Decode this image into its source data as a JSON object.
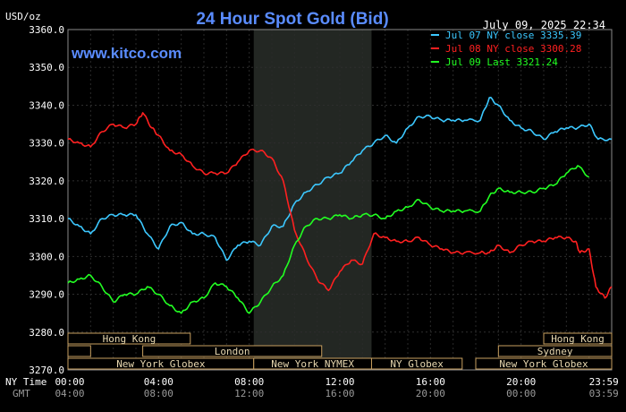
{
  "chart_data": {
    "type": "line",
    "title": "24 Hour Spot Gold (Bid)",
    "source": "www.kitco.com",
    "timestamp": "July 09, 2025 22:34",
    "ylabel": "USD/oz",
    "ylim": [
      3270,
      3360
    ],
    "xlim": [
      0,
      24
    ],
    "y_ticks": [
      "3360.0",
      "3350.0",
      "3340.0",
      "3330.0",
      "3320.0",
      "3310.0",
      "3300.0",
      "3290.0",
      "3280.0",
      "3270.0"
    ],
    "x_ticks_ny": [
      "00:00",
      "04:00",
      "08:00",
      "12:00",
      "16:00",
      "20:00",
      "23:59"
    ],
    "x_ticks_gmt": [
      "04:00",
      "08:00",
      "12:00",
      "16:00",
      "20:00",
      "00:00",
      "03:59"
    ],
    "row_labels": {
      "ny": "NY Time",
      "gmt": "GMT"
    },
    "grid": true,
    "legend_position": "top-right",
    "shaded_session": [
      8.2,
      13.4
    ],
    "sessions": {
      "row1": [
        {
          "label": "Hong Kong",
          "start": 0,
          "end": 5.4
        },
        {
          "label": "Hong Kong",
          "start": 21.0,
          "end": 24
        }
      ],
      "row2": [
        {
          "label": "",
          "start": 0,
          "end": 1.0
        },
        {
          "label": "London",
          "start": 3.3,
          "end": 11.2
        },
        {
          "label": "Sydney",
          "start": 19.0,
          "end": 24
        }
      ],
      "row3": [
        {
          "label": "New York Globex",
          "start": 0,
          "end": 8.2
        },
        {
          "label": "New York NYMEX",
          "start": 8.2,
          "end": 13.4
        },
        {
          "label": "NY Globex",
          "start": 13.4,
          "end": 17.4
        },
        {
          "label": "New York Globex",
          "start": 18.0,
          "end": 24
        }
      ]
    },
    "series": [
      {
        "name": "Jul 07 NY close 3335.39",
        "color": "#3cc8ff",
        "points": [
          [
            0,
            3310
          ],
          [
            0.5,
            3308
          ],
          [
            1,
            3306
          ],
          [
            1.5,
            3310
          ],
          [
            2,
            3311
          ],
          [
            2.5,
            3311
          ],
          [
            3,
            3311
          ],
          [
            3.5,
            3306
          ],
          [
            4,
            3302
          ],
          [
            4.5,
            3308
          ],
          [
            5,
            3309
          ],
          [
            5.5,
            3306
          ],
          [
            6,
            3306
          ],
          [
            6.5,
            3305
          ],
          [
            7,
            3299
          ],
          [
            7.5,
            3303
          ],
          [
            8,
            3304
          ],
          [
            8.5,
            3303
          ],
          [
            9,
            3308
          ],
          [
            9.5,
            3308
          ],
          [
            10,
            3314
          ],
          [
            10.5,
            3317
          ],
          [
            11,
            3319
          ],
          [
            11.5,
            3321
          ],
          [
            12,
            3322
          ],
          [
            12.5,
            3325
          ],
          [
            13,
            3328
          ],
          [
            13.5,
            3330
          ],
          [
            14,
            3332
          ],
          [
            14.5,
            3330
          ],
          [
            15,
            3334
          ],
          [
            15.5,
            3337
          ],
          [
            16,
            3337
          ],
          [
            16.5,
            3336
          ],
          [
            17,
            3336
          ],
          [
            17.5,
            3336
          ],
          [
            18.2,
            3336
          ],
          [
            18.6,
            3342
          ],
          [
            19,
            3340
          ],
          [
            19.5,
            3336
          ],
          [
            20,
            3334
          ],
          [
            20.5,
            3333
          ],
          [
            21,
            3331
          ],
          [
            21.5,
            3333
          ],
          [
            22,
            3334
          ],
          [
            22.5,
            3334
          ],
          [
            23,
            3335
          ],
          [
            23.4,
            3331
          ],
          [
            24,
            3331
          ]
        ]
      },
      {
        "name": "Jul 08 NY close 3300.28",
        "color": "#ff2020",
        "points": [
          [
            0,
            3331
          ],
          [
            0.5,
            3330
          ],
          [
            1,
            3329
          ],
          [
            1.5,
            3333
          ],
          [
            2,
            3335
          ],
          [
            2.5,
            3334
          ],
          [
            3,
            3335
          ],
          [
            3.3,
            3338
          ],
          [
            3.7,
            3334
          ],
          [
            4,
            3332
          ],
          [
            4.5,
            3328
          ],
          [
            5,
            3327
          ],
          [
            5.5,
            3324
          ],
          [
            6,
            3322
          ],
          [
            6.5,
            3322
          ],
          [
            7,
            3322
          ],
          [
            7.5,
            3325
          ],
          [
            8,
            3328
          ],
          [
            8.5,
            3328
          ],
          [
            9,
            3326
          ],
          [
            9.5,
            3320
          ],
          [
            10,
            3307
          ],
          [
            10.5,
            3300
          ],
          [
            11,
            3294
          ],
          [
            11.5,
            3291
          ],
          [
            12,
            3296
          ],
          [
            12.5,
            3299
          ],
          [
            13,
            3298
          ],
          [
            13.5,
            3306
          ],
          [
            14,
            3305
          ],
          [
            14.5,
            3304
          ],
          [
            15,
            3304
          ],
          [
            15.5,
            3305
          ],
          [
            16,
            3303
          ],
          [
            16.5,
            3302
          ],
          [
            17,
            3301
          ],
          [
            17.5,
            3301
          ],
          [
            18.2,
            3301
          ],
          [
            18.6,
            3301
          ],
          [
            19,
            3303
          ],
          [
            19.5,
            3301
          ],
          [
            20,
            3303
          ],
          [
            20.5,
            3304
          ],
          [
            21,
            3304
          ],
          [
            21.5,
            3305
          ],
          [
            22,
            3305
          ],
          [
            22.4,
            3304
          ],
          [
            22.6,
            3301
          ],
          [
            23,
            3302
          ],
          [
            23.3,
            3292
          ],
          [
            23.7,
            3289
          ],
          [
            24,
            3292
          ]
        ]
      },
      {
        "name": "Jul 09 Last 3321.24",
        "color": "#22ff22",
        "points": [
          [
            0,
            3293
          ],
          [
            0.5,
            3294
          ],
          [
            1,
            3295
          ],
          [
            1.5,
            3292
          ],
          [
            2,
            3288
          ],
          [
            2.5,
            3290
          ],
          [
            3,
            3290
          ],
          [
            3.5,
            3292
          ],
          [
            4,
            3290
          ],
          [
            4.5,
            3287
          ],
          [
            5,
            3285
          ],
          [
            5.5,
            3288
          ],
          [
            6,
            3289
          ],
          [
            6.5,
            3293
          ],
          [
            7,
            3292
          ],
          [
            7.5,
            3289
          ],
          [
            8,
            3285
          ],
          [
            8.5,
            3288
          ],
          [
            9,
            3292
          ],
          [
            9.5,
            3295
          ],
          [
            10,
            3303
          ],
          [
            10.5,
            3308
          ],
          [
            11,
            3310
          ],
          [
            11.5,
            3310
          ],
          [
            12,
            3311
          ],
          [
            12.5,
            3310
          ],
          [
            13,
            3311
          ],
          [
            13.5,
            3311
          ],
          [
            14,
            3310
          ],
          [
            14.5,
            3312
          ],
          [
            15,
            3313
          ],
          [
            15.5,
            3315
          ],
          [
            16,
            3313
          ],
          [
            16.5,
            3312
          ],
          [
            17,
            3312
          ],
          [
            17.5,
            3312
          ],
          [
            18.2,
            3312
          ],
          [
            18.6,
            3316
          ],
          [
            19,
            3318
          ],
          [
            19.5,
            3317
          ],
          [
            20,
            3317
          ],
          [
            20.5,
            3317
          ],
          [
            21,
            3318
          ],
          [
            21.5,
            3319
          ],
          [
            22,
            3322
          ],
          [
            22.5,
            3324
          ],
          [
            23,
            3321
          ]
        ]
      }
    ]
  }
}
